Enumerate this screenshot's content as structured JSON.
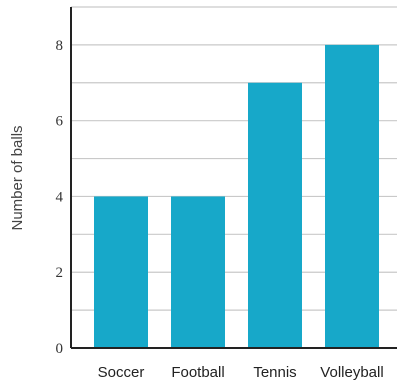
{
  "chart_data": {
    "type": "bar",
    "categories": [
      "Soccer",
      "Football",
      "Tennis",
      "Volleyball"
    ],
    "values": [
      4,
      4,
      7,
      8
    ],
    "title": "",
    "xlabel": "",
    "ylabel": "Number of balls",
    "ylim": [
      0,
      9
    ],
    "yticks": [
      0,
      2,
      4,
      6,
      8
    ],
    "ytick_labels": [
      "0",
      "2",
      "4",
      "6",
      "8"
    ],
    "grid": true,
    "gridlines": [
      1,
      2,
      3,
      4,
      5,
      6,
      7,
      8,
      9
    ],
    "legend": "none",
    "bar_color": "#17a8c9"
  }
}
